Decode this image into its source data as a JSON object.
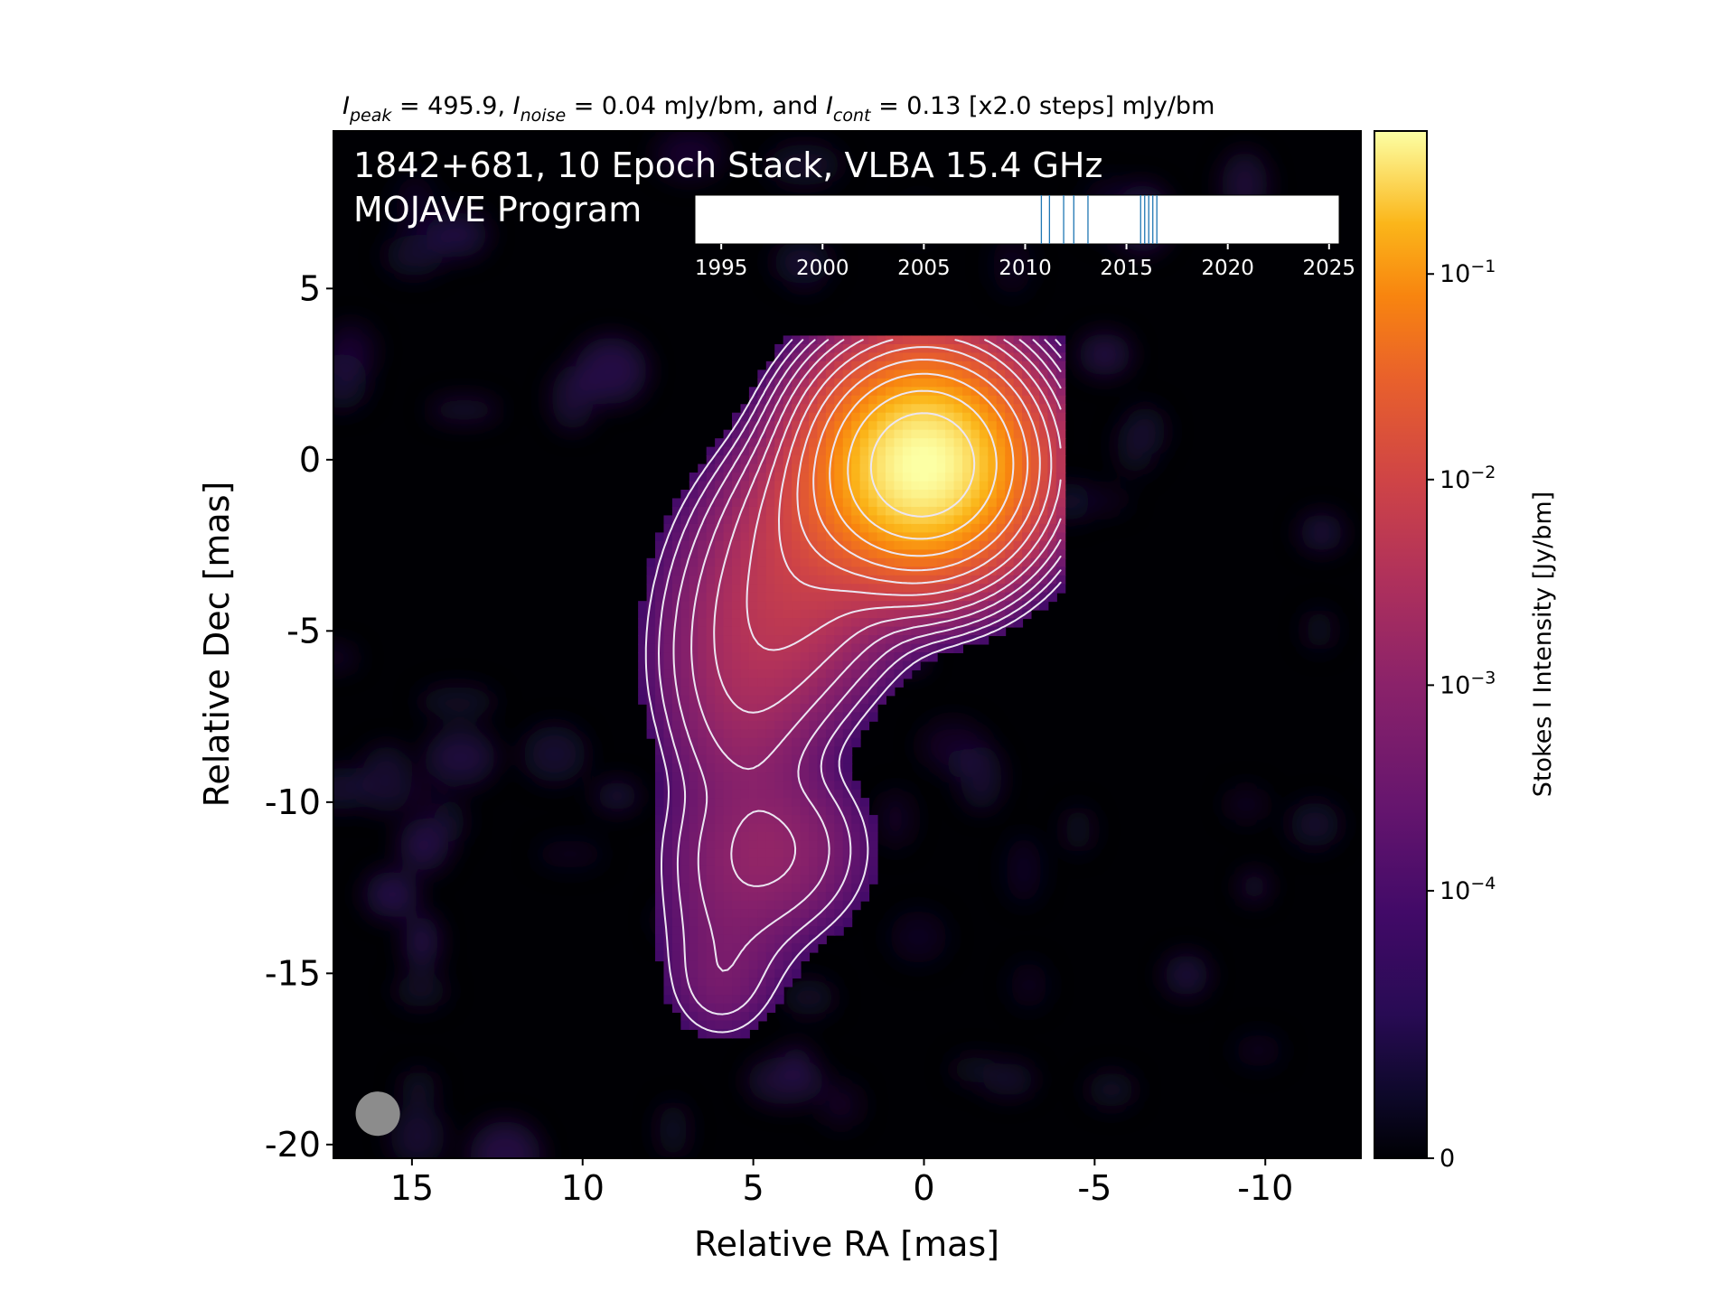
{
  "chart_data": {
    "type": "heatmap",
    "title": {
      "intro": "",
      "i_peak_sym": "I",
      "i_peak_sub": "peak",
      "peak_text": " = 495.9, ",
      "i_noise_sym": "I",
      "i_noise_sub": "noise",
      "noise_text": " = 0.04 mJy/bm, and ",
      "i_cont_sym": "I",
      "i_cont_sub": "cont",
      "cont_text": " = 0.13 [x2.0 steps] mJy/bm"
    },
    "source_label": "1842+681, 10 Epoch Stack, VLBA 15.4 GHz",
    "program_label": "MOJAVE Program",
    "xlabel": "Relative RA [mas]",
    "ylabel": "Relative Dec [mas]",
    "xlim": [
      17.3,
      -12.8
    ],
    "ylim": [
      -20.4,
      9.6
    ],
    "x_ticks": [
      15,
      10,
      5,
      0,
      -5,
      -10
    ],
    "y_ticks": [
      5,
      0,
      -5,
      -10,
      -15,
      -20
    ],
    "x_tick_labels": [
      "15",
      "10",
      "5",
      "0",
      "-5",
      "-10"
    ],
    "y_tick_labels": [
      "5",
      "0",
      "-5",
      "-10",
      "-15",
      "-20"
    ],
    "colorbar": {
      "label": "Stokes I Intensity [Jy/bm]",
      "colormap": "inferno",
      "scale": "symlog",
      "ticks": [
        0,
        0.0001,
        0.001,
        0.01,
        0.1
      ],
      "tick_bases": [
        "0",
        "10",
        "10",
        "10",
        "10"
      ],
      "tick_exponents": [
        "",
        "−4",
        "−3",
        "−2",
        "−1"
      ]
    },
    "timeline": {
      "xlim": [
        1993.7,
        2025.5
      ],
      "ticks": [
        1995,
        2000,
        2005,
        2010,
        2015,
        2020,
        2025
      ],
      "tick_labels": [
        "1995",
        "2000",
        "2005",
        "2010",
        "2015",
        "2020",
        "2025"
      ],
      "epochs": [
        2010.8,
        2011.2,
        2011.9,
        2012.4,
        2013.1,
        2015.7,
        2015.9,
        2016.1,
        2016.3,
        2016.5
      ]
    },
    "contours": {
      "base_mjy_per_beam": 0.13,
      "step_factor": 2.0
    },
    "components": [
      {
        "ra": 0.0,
        "dec": -0.1,
        "sigma_ra": 1.3,
        "sigma_dec": 1.3,
        "peak_jy": 0.4959
      },
      {
        "ra": 1.0,
        "dec": -1.0,
        "sigma_ra": 1.5,
        "sigma_dec": 1.1,
        "peak_jy": 0.03
      },
      {
        "ra": 2.0,
        "dec": -2.0,
        "sigma_ra": 1.6,
        "sigma_dec": 1.1,
        "peak_jy": 0.008
      },
      {
        "ra": 3.2,
        "dec": -3.2,
        "sigma_ra": 1.5,
        "sigma_dec": 1.3,
        "peak_jy": 0.004
      },
      {
        "ra": 4.3,
        "dec": -4.6,
        "sigma_ra": 1.4,
        "sigma_dec": 1.4,
        "peak_jy": 0.003
      },
      {
        "ra": 5.0,
        "dec": -6.3,
        "sigma_ra": 1.3,
        "sigma_dec": 1.3,
        "peak_jy": 0.0015
      },
      {
        "ra": 5.3,
        "dec": -8.2,
        "sigma_ra": 1.1,
        "sigma_dec": 1.3,
        "peak_jy": 0.0008
      },
      {
        "ra": 4.6,
        "dec": -11.4,
        "sigma_ra": 1.4,
        "sigma_dec": 1.3,
        "peak_jy": 0.0012
      },
      {
        "ra": 5.7,
        "dec": -13.8,
        "sigma_ra": 1.1,
        "sigma_dec": 1.4,
        "peak_jy": 0.0004
      },
      {
        "ra": 6.0,
        "dec": -15.4,
        "sigma_ra": 0.8,
        "sigma_dec": 0.9,
        "peak_jy": 0.00025
      }
    ],
    "beam": {
      "ra": 16.0,
      "dec": -19.1,
      "diameter_mas": 1.3,
      "color": "#8c8c8c"
    }
  }
}
